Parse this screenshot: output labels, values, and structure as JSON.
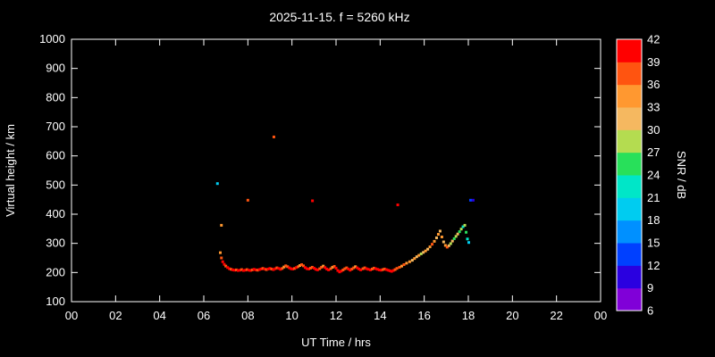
{
  "colors": {
    "background": "#000000",
    "foreground": "#ffffff"
  },
  "chart_data": {
    "type": "scatter",
    "title": "2025-11-15. f = 5260 kHz",
    "xlabel": "UT Time / hrs",
    "ylabel": "Virtual height / km",
    "colorbar_label": "SNR / dB",
    "xlim": [
      0,
      24
    ],
    "ylim": [
      100,
      1000
    ],
    "grid": false,
    "x_ticks": [
      {
        "v": 0,
        "label": "00"
      },
      {
        "v": 2,
        "label": "02"
      },
      {
        "v": 4,
        "label": "04"
      },
      {
        "v": 6,
        "label": "06"
      },
      {
        "v": 8,
        "label": "08"
      },
      {
        "v": 10,
        "label": "10"
      },
      {
        "v": 12,
        "label": "12"
      },
      {
        "v": 14,
        "label": "14"
      },
      {
        "v": 16,
        "label": "16"
      },
      {
        "v": 18,
        "label": "18"
      },
      {
        "v": 20,
        "label": "20"
      },
      {
        "v": 22,
        "label": "22"
      },
      {
        "v": 24,
        "label": "00"
      }
    ],
    "y_ticks": [
      100,
      200,
      300,
      400,
      500,
      600,
      700,
      800,
      900,
      1000
    ],
    "colorbar": {
      "min": 6,
      "max": 42,
      "ticks": [
        6,
        9,
        12,
        15,
        18,
        21,
        24,
        27,
        30,
        33,
        36,
        39,
        42
      ],
      "band_colors": [
        "#8000d8",
        "#2a00e0",
        "#0040ff",
        "#0090ff",
        "#00ccf0",
        "#00e6c8",
        "#28e05a",
        "#b4dc50",
        "#f5b860",
        "#ff9830",
        "#ff5410",
        "#ff0000"
      ]
    },
    "points": [
      [
        6.62,
        505,
        18
      ],
      [
        6.8,
        362,
        33
      ],
      [
        8.0,
        448,
        36
      ],
      [
        9.18,
        665,
        36
      ],
      [
        10.93,
        446,
        39
      ],
      [
        14.8,
        432,
        39
      ],
      [
        18.1,
        448,
        12
      ],
      [
        18.22,
        448,
        9
      ],
      [
        6.75,
        268,
        33
      ],
      [
        6.8,
        250,
        36
      ],
      [
        6.86,
        237,
        39
      ],
      [
        6.93,
        228,
        39
      ],
      [
        7.0,
        222,
        36
      ],
      [
        7.08,
        217,
        39
      ],
      [
        7.16,
        213,
        39
      ],
      [
        7.24,
        211,
        36
      ],
      [
        7.32,
        209,
        39
      ],
      [
        7.4,
        208,
        39
      ],
      [
        7.48,
        209,
        36
      ],
      [
        7.56,
        207,
        39
      ],
      [
        7.64,
        208,
        39
      ],
      [
        7.72,
        210,
        36
      ],
      [
        7.8,
        207,
        39
      ],
      [
        7.88,
        208,
        39
      ],
      [
        7.96,
        210,
        36
      ],
      [
        8.04,
        208,
        39
      ],
      [
        8.12,
        207,
        39
      ],
      [
        8.2,
        209,
        36
      ],
      [
        8.28,
        211,
        39
      ],
      [
        8.36,
        209,
        39
      ],
      [
        8.44,
        208,
        36
      ],
      [
        8.52,
        210,
        39
      ],
      [
        8.6,
        212,
        39
      ],
      [
        8.68,
        214,
        36
      ],
      [
        8.76,
        212,
        39
      ],
      [
        8.84,
        210,
        36
      ],
      [
        8.92,
        212,
        39
      ],
      [
        9.0,
        214,
        39
      ],
      [
        9.08,
        212,
        36
      ],
      [
        9.16,
        210,
        39
      ],
      [
        9.24,
        213,
        39
      ],
      [
        9.32,
        216,
        36
      ],
      [
        9.4,
        214,
        39
      ],
      [
        9.48,
        211,
        39
      ],
      [
        9.56,
        214,
        36
      ],
      [
        9.64,
        219,
        33
      ],
      [
        9.72,
        223,
        36
      ],
      [
        9.8,
        220,
        36
      ],
      [
        9.88,
        216,
        39
      ],
      [
        9.96,
        213,
        39
      ],
      [
        10.04,
        212,
        39
      ],
      [
        10.12,
        214,
        36
      ],
      [
        10.2,
        217,
        39
      ],
      [
        10.28,
        220,
        36
      ],
      [
        10.36,
        224,
        33
      ],
      [
        10.44,
        227,
        36
      ],
      [
        10.52,
        223,
        36
      ],
      [
        10.6,
        217,
        39
      ],
      [
        10.68,
        213,
        39
      ],
      [
        10.76,
        212,
        39
      ],
      [
        10.84,
        215,
        36
      ],
      [
        10.92,
        218,
        36
      ],
      [
        11.0,
        215,
        39
      ],
      [
        11.08,
        211,
        39
      ],
      [
        11.16,
        209,
        39
      ],
      [
        11.26,
        213,
        36
      ],
      [
        11.34,
        218,
        36
      ],
      [
        11.42,
        222,
        33
      ],
      [
        11.5,
        217,
        39
      ],
      [
        11.58,
        212,
        39
      ],
      [
        11.66,
        209,
        39
      ],
      [
        11.76,
        213,
        36
      ],
      [
        11.84,
        218,
        33
      ],
      [
        11.92,
        221,
        36
      ],
      [
        12.0,
        215,
        39
      ],
      [
        12.08,
        207,
        39
      ],
      [
        12.16,
        202,
        39
      ],
      [
        12.24,
        205,
        39
      ],
      [
        12.32,
        209,
        36
      ],
      [
        12.4,
        213,
        36
      ],
      [
        12.48,
        216,
        36
      ],
      [
        12.56,
        212,
        39
      ],
      [
        12.64,
        208,
        39
      ],
      [
        12.72,
        212,
        36
      ],
      [
        12.8,
        216,
        36
      ],
      [
        12.88,
        220,
        33
      ],
      [
        12.96,
        216,
        39
      ],
      [
        13.04,
        212,
        39
      ],
      [
        13.12,
        209,
        39
      ],
      [
        13.22,
        213,
        36
      ],
      [
        13.3,
        216,
        36
      ],
      [
        13.38,
        213,
        39
      ],
      [
        13.46,
        211,
        39
      ],
      [
        13.56,
        209,
        39
      ],
      [
        13.64,
        212,
        36
      ],
      [
        13.72,
        215,
        36
      ],
      [
        13.8,
        213,
        39
      ],
      [
        13.88,
        211,
        39
      ],
      [
        13.96,
        209,
        39
      ],
      [
        14.04,
        208,
        39
      ],
      [
        14.12,
        210,
        36
      ],
      [
        14.2,
        212,
        36
      ],
      [
        14.28,
        210,
        39
      ],
      [
        14.36,
        208,
        39
      ],
      [
        14.44,
        206,
        39
      ],
      [
        14.52,
        204,
        39
      ],
      [
        14.6,
        207,
        39
      ],
      [
        14.68,
        210,
        36
      ],
      [
        14.76,
        214,
        36
      ],
      [
        14.88,
        218,
        36
      ],
      [
        14.98,
        222,
        33
      ],
      [
        15.08,
        227,
        36
      ],
      [
        15.2,
        232,
        33
      ],
      [
        15.34,
        237,
        33
      ],
      [
        15.46,
        242,
        30
      ],
      [
        15.56,
        248,
        33
      ],
      [
        15.66,
        254,
        30
      ],
      [
        15.76,
        259,
        33
      ],
      [
        15.86,
        264,
        27
      ],
      [
        15.96,
        269,
        30
      ],
      [
        16.06,
        274,
        33
      ],
      [
        16.16,
        280,
        30
      ],
      [
        16.26,
        288,
        33
      ],
      [
        16.36,
        297,
        36
      ],
      [
        16.46,
        307,
        33
      ],
      [
        16.56,
        319,
        30
      ],
      [
        16.64,
        331,
        33
      ],
      [
        16.72,
        342,
        30
      ],
      [
        16.8,
        322,
        33
      ],
      [
        16.88,
        305,
        30
      ],
      [
        16.96,
        293,
        33
      ],
      [
        17.04,
        287,
        36
      ],
      [
        17.12,
        292,
        30
      ],
      [
        17.2,
        299,
        27
      ],
      [
        17.28,
        308,
        30
      ],
      [
        17.36,
        316,
        24
      ],
      [
        17.44,
        324,
        27
      ],
      [
        17.52,
        332,
        30
      ],
      [
        17.6,
        340,
        24
      ],
      [
        17.68,
        349,
        27
      ],
      [
        17.76,
        357,
        21
      ],
      [
        17.84,
        362,
        27
      ],
      [
        17.9,
        338,
        24
      ],
      [
        17.96,
        315,
        21
      ],
      [
        18.02,
        303,
        18
      ]
    ]
  }
}
